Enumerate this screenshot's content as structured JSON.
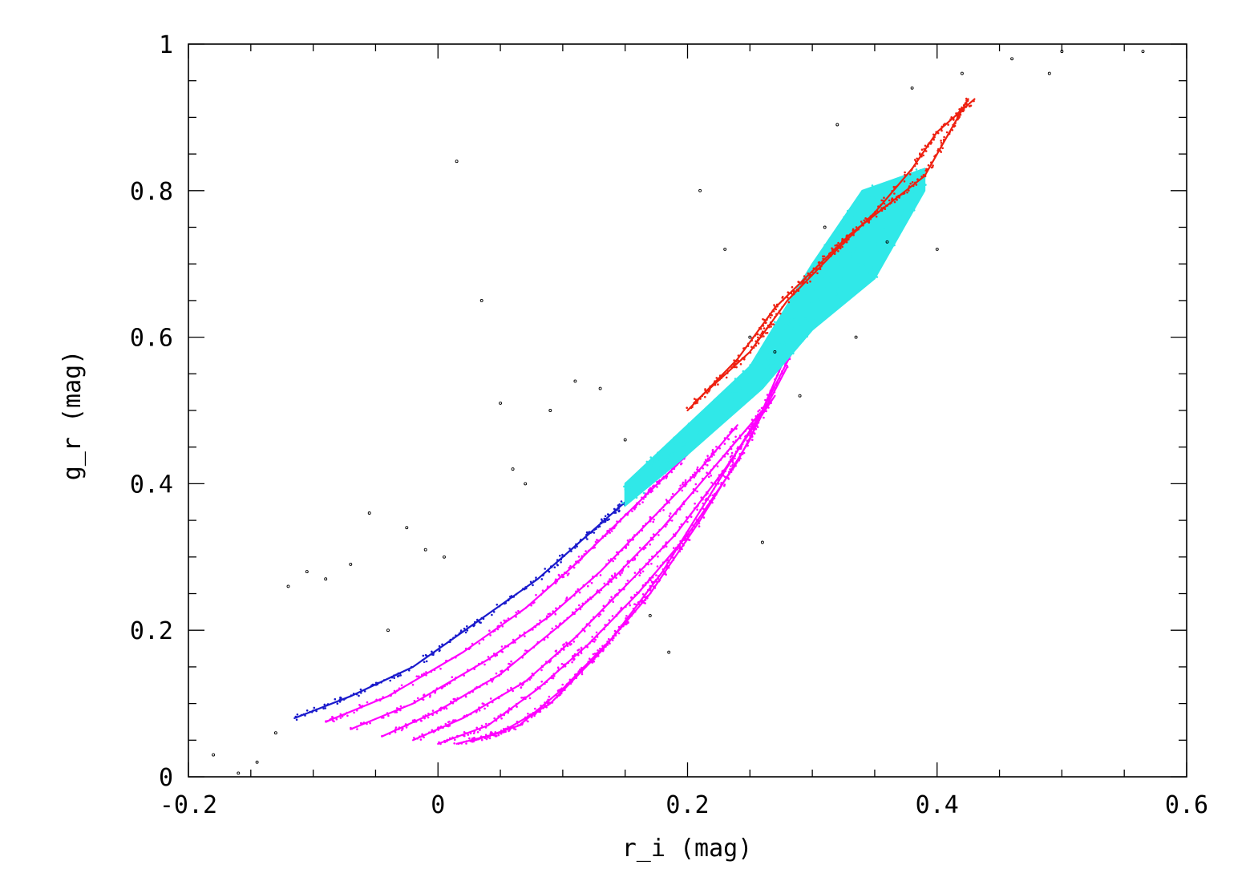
{
  "chart_data": {
    "type": "scatter",
    "title": "",
    "xlabel": "r_i (mag)",
    "ylabel": "g_r (mag)",
    "xlim": [
      -0.2,
      0.6
    ],
    "ylim": [
      0,
      1
    ],
    "x_ticks": [
      "-0.2",
      "0",
      "0.2",
      "0.4",
      "0.6"
    ],
    "y_ticks": [
      "0",
      "0.2",
      "0.4",
      "0.6",
      "0.8",
      "1"
    ],
    "grid": false,
    "legend": "none",
    "series": [
      {
        "color": "#1a1acc",
        "curves": [
          [
            [
              -0.115,
              0.08
            ],
            [
              -0.07,
              0.11
            ],
            [
              -0.02,
              0.15
            ],
            [
              0.03,
              0.21
            ],
            [
              0.08,
              0.27
            ],
            [
              0.12,
              0.33
            ],
            [
              0.14,
              0.36
            ],
            [
              0.16,
              0.39
            ]
          ]
        ]
      },
      {
        "color": "#ff00ff",
        "curves": [
          [
            [
              -0.09,
              0.075
            ],
            [
              -0.04,
              0.11
            ],
            [
              0.02,
              0.17
            ],
            [
              0.07,
              0.23
            ],
            [
              0.11,
              0.29
            ],
            [
              0.14,
              0.34
            ],
            [
              0.17,
              0.39
            ],
            [
              0.2,
              0.44
            ]
          ],
          [
            [
              -0.07,
              0.065
            ],
            [
              -0.02,
              0.1
            ],
            [
              0.04,
              0.16
            ],
            [
              0.09,
              0.22
            ],
            [
              0.13,
              0.28
            ],
            [
              0.17,
              0.35
            ],
            [
              0.21,
              0.42
            ],
            [
              0.24,
              0.48
            ]
          ],
          [
            [
              -0.045,
              0.055
            ],
            [
              0.0,
              0.09
            ],
            [
              0.05,
              0.14
            ],
            [
              0.1,
              0.21
            ],
            [
              0.14,
              0.27
            ],
            [
              0.18,
              0.34
            ],
            [
              0.22,
              0.42
            ],
            [
              0.26,
              0.5
            ]
          ],
          [
            [
              -0.02,
              0.05
            ],
            [
              0.02,
              0.08
            ],
            [
              0.07,
              0.13
            ],
            [
              0.11,
              0.19
            ],
            [
              0.15,
              0.26
            ],
            [
              0.19,
              0.33
            ],
            [
              0.23,
              0.42
            ],
            [
              0.27,
              0.52
            ]
          ],
          [
            [
              0.0,
              0.045
            ],
            [
              0.04,
              0.07
            ],
            [
              0.08,
              0.12
            ],
            [
              0.12,
              0.18
            ],
            [
              0.16,
              0.25
            ],
            [
              0.2,
              0.33
            ],
            [
              0.24,
              0.43
            ],
            [
              0.28,
              0.56
            ]
          ],
          [
            [
              0.015,
              0.045
            ],
            [
              0.05,
              0.06
            ],
            [
              0.09,
              0.1
            ],
            [
              0.13,
              0.17
            ],
            [
              0.17,
              0.25
            ],
            [
              0.21,
              0.35
            ],
            [
              0.25,
              0.46
            ],
            [
              0.285,
              0.6
            ]
          ],
          [
            [
              0.03,
              0.05
            ],
            [
              0.065,
              0.07
            ],
            [
              0.1,
              0.12
            ],
            [
              0.14,
              0.19
            ],
            [
              0.18,
              0.28
            ],
            [
              0.22,
              0.39
            ],
            [
              0.26,
              0.5
            ],
            [
              0.29,
              0.6
            ]
          ]
        ]
      },
      {
        "color": "#30e8e8",
        "bands": [
          {
            "upper": [
              [
                0.15,
                0.4
              ],
              [
                0.2,
                0.48
              ],
              [
                0.25,
                0.56
              ],
              [
                0.3,
                0.7
              ],
              [
                0.34,
                0.8
              ],
              [
                0.39,
                0.83
              ]
            ],
            "lower": [
              [
                0.15,
                0.37
              ],
              [
                0.2,
                0.44
              ],
              [
                0.26,
                0.53
              ],
              [
                0.3,
                0.61
              ],
              [
                0.35,
                0.68
              ],
              [
                0.39,
                0.8
              ]
            ]
          }
        ]
      },
      {
        "color": "#ee2010",
        "curves": [
          [
            [
              0.2,
              0.5
            ],
            [
              0.24,
              0.57
            ],
            [
              0.27,
              0.64
            ],
            [
              0.3,
              0.69
            ],
            [
              0.33,
              0.74
            ],
            [
              0.36,
              0.78
            ],
            [
              0.39,
              0.82
            ],
            [
              0.41,
              0.88
            ],
            [
              0.425,
              0.925
            ]
          ],
          [
            [
              0.205,
              0.51
            ],
            [
              0.25,
              0.58
            ],
            [
              0.28,
              0.65
            ],
            [
              0.32,
              0.72
            ],
            [
              0.35,
              0.77
            ],
            [
              0.38,
              0.83
            ],
            [
              0.4,
              0.88
            ],
            [
              0.43,
              0.925
            ]
          ]
        ]
      },
      {
        "color": "#000000",
        "points": [
          [
            -0.18,
            0.03
          ],
          [
            -0.16,
            0.005
          ],
          [
            -0.145,
            0.02
          ],
          [
            -0.13,
            0.06
          ],
          [
            -0.12,
            0.26
          ],
          [
            -0.105,
            0.28
          ],
          [
            -0.09,
            0.27
          ],
          [
            -0.07,
            0.29
          ],
          [
            -0.055,
            0.36
          ],
          [
            -0.04,
            0.2
          ],
          [
            -0.025,
            0.34
          ],
          [
            -0.01,
            0.31
          ],
          [
            0.005,
            0.3
          ],
          [
            0.015,
            0.84
          ],
          [
            0.035,
            0.65
          ],
          [
            0.05,
            0.51
          ],
          [
            0.06,
            0.42
          ],
          [
            0.07,
            0.4
          ],
          [
            0.09,
            0.5
          ],
          [
            0.11,
            0.54
          ],
          [
            0.13,
            0.53
          ],
          [
            0.15,
            0.46
          ],
          [
            0.17,
            0.22
          ],
          [
            0.185,
            0.17
          ],
          [
            0.21,
            0.8
          ],
          [
            0.23,
            0.72
          ],
          [
            0.25,
            0.6
          ],
          [
            0.26,
            0.32
          ],
          [
            0.27,
            0.58
          ],
          [
            0.29,
            0.52
          ],
          [
            0.31,
            0.75
          ],
          [
            0.32,
            0.89
          ],
          [
            0.335,
            0.6
          ],
          [
            0.36,
            0.73
          ],
          [
            0.38,
            0.94
          ],
          [
            0.4,
            0.72
          ],
          [
            0.42,
            0.96
          ],
          [
            0.46,
            0.98
          ],
          [
            0.49,
            0.96
          ],
          [
            0.5,
            0.99
          ],
          [
            0.565,
            0.99
          ]
        ]
      }
    ]
  }
}
